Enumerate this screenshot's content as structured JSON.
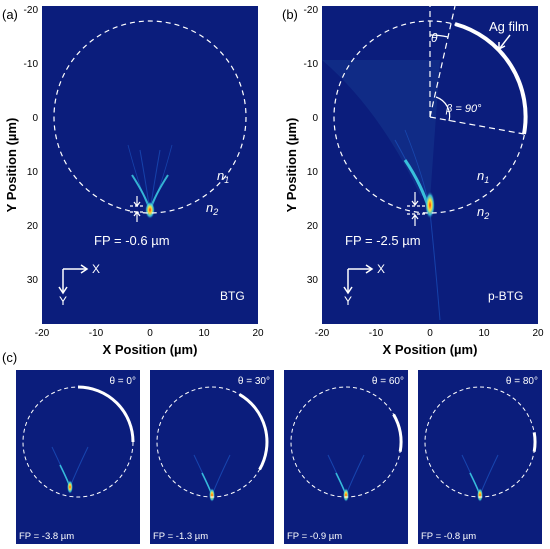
{
  "panels": {
    "a": {
      "label": "(a)",
      "fp": "FP = -0.6 µm",
      "tag": "BTG",
      "n1": "n",
      "n1_sub": "1",
      "n2": "n",
      "n2_sub": "2"
    },
    "b": {
      "label": "(b)",
      "fp": "FP = -2.5 µm",
      "tag": "p-BTG",
      "n1": "n",
      "n1_sub": "1",
      "n2": "n",
      "n2_sub": "2",
      "film": "Ag film",
      "theta": "θ",
      "beta": "β = 90°"
    },
    "c": {
      "label": "(c)",
      "insets": [
        {
          "theta_label": "θ = 0°",
          "fp": "FP = -3.8 µm"
        },
        {
          "theta_label": "θ = 30°",
          "fp": "FP = -1.3 µm"
        },
        {
          "theta_label": "θ = 60°",
          "fp": "FP = -0.9 µm"
        },
        {
          "theta_label": "θ = 80°",
          "fp": "FP = -0.8 µm"
        }
      ]
    }
  },
  "axes": {
    "xlabel": "X Position (µm)",
    "ylabel": "Y Position (µm)",
    "xticks": [
      "-20",
      "-10",
      "0",
      "10",
      "20"
    ],
    "yticks": [
      "-20",
      "-10",
      "0",
      "10",
      "20",
      "30"
    ],
    "arrow_x": "X",
    "arrow_y": "Y"
  },
  "colors": {
    "field_bg": "#0b1d7c",
    "overlay": "#ffffff",
    "hot": "#ff4a10",
    "warm": "#ffe23a",
    "cool": "#3fd8e8"
  }
}
